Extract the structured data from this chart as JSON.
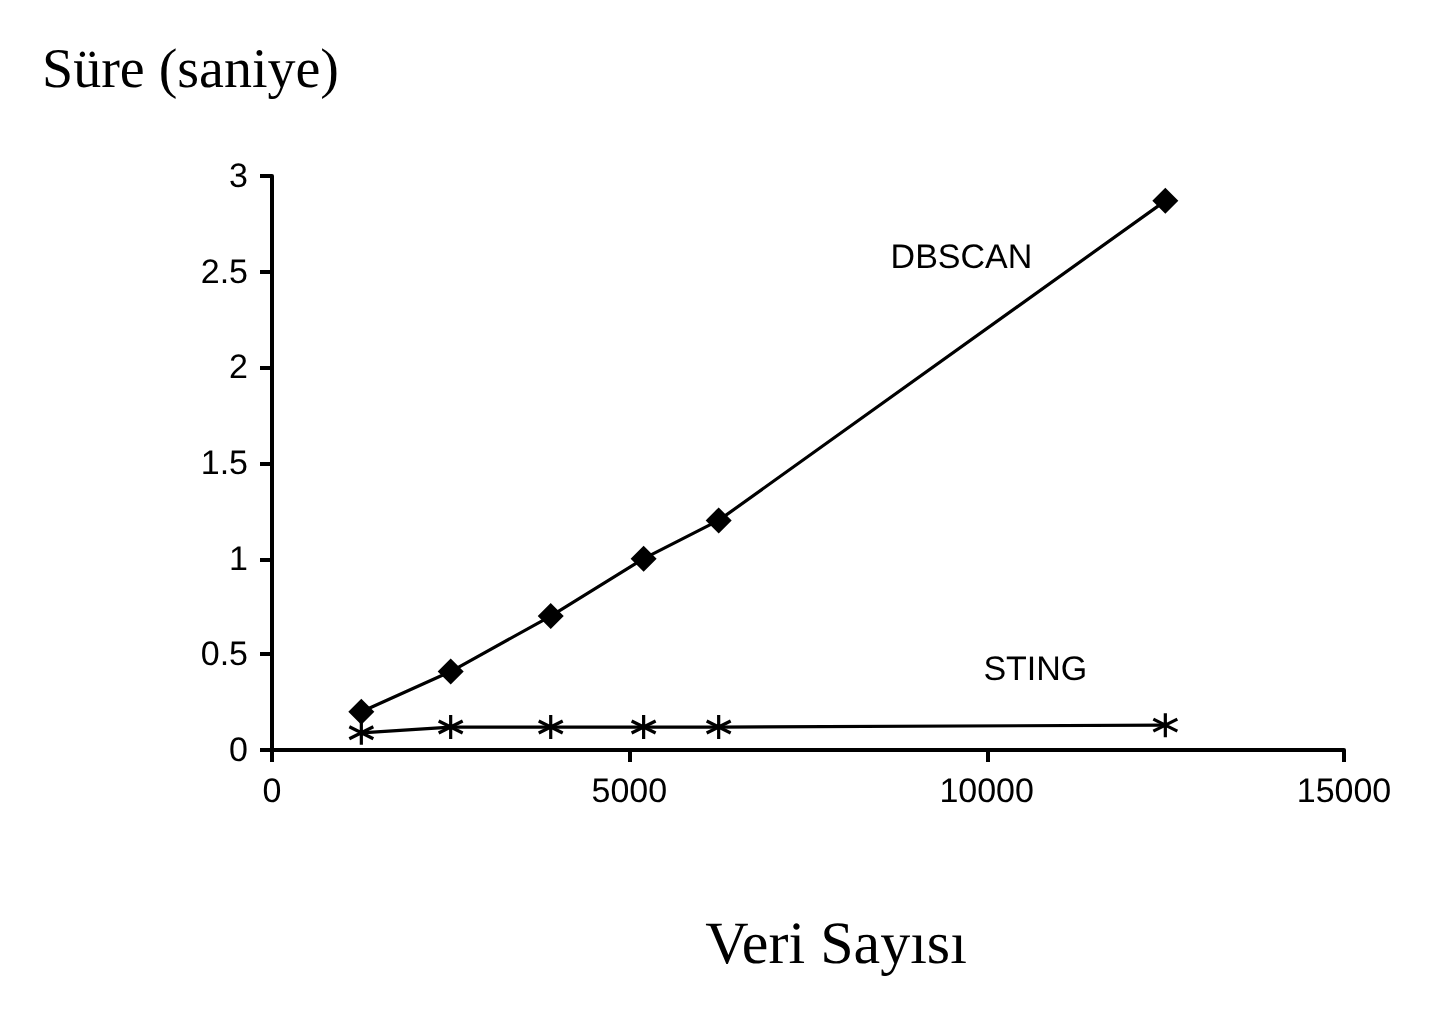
{
  "chart_data": {
    "type": "line",
    "ylabel": "Süre (saniye)",
    "xlabel": "Veri Sayısı",
    "x": [
      1250,
      2500,
      3900,
      5200,
      6250,
      12500
    ],
    "series": [
      {
        "name": "DBSCAN",
        "color": "#000000",
        "marker": "diamond",
        "values": [
          0.2,
          0.41,
          0.7,
          1.0,
          1.2,
          2.87
        ]
      },
      {
        "name": "STING",
        "color": "#000000",
        "marker": "cross",
        "values": [
          0.09,
          0.12,
          0.12,
          0.12,
          0.12,
          0.13
        ]
      }
    ],
    "xlim": [
      0,
      15000
    ],
    "xticks": [
      0,
      5000,
      10000,
      15000
    ],
    "ylim": [
      0,
      3
    ],
    "yticks": [
      0,
      0.5,
      1,
      1.5,
      2,
      2.5,
      3
    ],
    "grid": false,
    "legend": false,
    "line_style": "solid"
  }
}
